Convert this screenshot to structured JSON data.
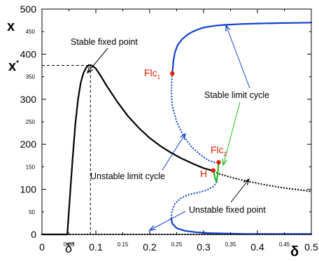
{
  "chart_data": {
    "type": "line",
    "title": "",
    "xlabel": "δ",
    "ylabel": "x",
    "xlim": [
      0,
      0.5
    ],
    "ylim": [
      0,
      500
    ],
    "x_ticks": [
      {
        "v": 0,
        "label": "0",
        "size": "major"
      },
      {
        "v": 0.05,
        "label": "0.05",
        "size": "minor"
      },
      {
        "v": 0.1,
        "label": "0.1",
        "size": "major"
      },
      {
        "v": 0.15,
        "label": "0.15",
        "size": "minor"
      },
      {
        "v": 0.2,
        "label": "0.2",
        "size": "major"
      },
      {
        "v": 0.25,
        "label": "0.25",
        "size": "minor"
      },
      {
        "v": 0.3,
        "label": "0.3",
        "size": "major"
      },
      {
        "v": 0.35,
        "label": "0.35",
        "size": "minor"
      },
      {
        "v": 0.4,
        "label": "0.4",
        "size": "major"
      },
      {
        "v": 0.45,
        "label": "0.45",
        "size": "minor"
      },
      {
        "v": 0.5,
        "label": "0.5",
        "size": "major"
      }
    ],
    "y_ticks": [
      {
        "v": 0,
        "label": "0",
        "size": "major"
      },
      {
        "v": 50,
        "label": "50",
        "size": "minor"
      },
      {
        "v": 100,
        "label": "100",
        "size": "major"
      },
      {
        "v": 150,
        "label": "150",
        "size": "minor"
      },
      {
        "v": 200,
        "label": "200",
        "size": "major"
      },
      {
        "v": 250,
        "label": "250",
        "size": "minor"
      },
      {
        "v": 300,
        "label": "300",
        "size": "major"
      },
      {
        "v": 350,
        "label": "350",
        "size": "minor"
      },
      {
        "v": 400,
        "label": "400",
        "size": "major"
      },
      {
        "v": 450,
        "label": "450",
        "size": "minor"
      },
      {
        "v": 500,
        "label": "500",
        "size": "major"
      }
    ],
    "series": [
      {
        "key": "stable_fp_zero",
        "color": "#000000",
        "style": "solid",
        "width": 2.2,
        "x": [
          0,
          0.047
        ],
        "y": [
          0,
          0
        ]
      },
      {
        "key": "stable_fp_branch",
        "color": "#000000",
        "style": "solid",
        "width": 2.2,
        "x": [
          0.047,
          0.052,
          0.057,
          0.062,
          0.067,
          0.072,
          0.077,
          0.082,
          0.087,
          0.092,
          0.096,
          0.1,
          0.11,
          0.12,
          0.14,
          0.16,
          0.18,
          0.2,
          0.22,
          0.24,
          0.26,
          0.28,
          0.3,
          0.315
        ],
        "y": [
          0,
          85,
          170,
          245,
          300,
          337,
          358,
          370,
          376,
          375,
          372,
          368,
          350,
          330,
          294,
          262,
          236,
          214,
          196,
          181,
          168,
          157,
          147,
          142
        ]
      },
      {
        "key": "unstable_fp",
        "color": "#000000",
        "style": "dotted",
        "width": 2.2,
        "x": [
          0.315,
          0.33,
          0.35,
          0.37,
          0.39,
          0.41,
          0.43,
          0.45,
          0.47,
          0.49,
          0.5
        ],
        "y": [
          142,
          134,
          127,
          121,
          116,
          111,
          107,
          103,
          100,
          97,
          95
        ]
      },
      {
        "key": "unstable_fp_zero",
        "color": "#000000",
        "style": "dotted",
        "width": 2.2,
        "x": [
          0.047,
          0.1,
          0.2,
          0.3,
          0.4,
          0.5
        ],
        "y": [
          0,
          0,
          0,
          0,
          0,
          0
        ]
      },
      {
        "key": "stable_lc_upper",
        "color": "#1040d0",
        "style": "solid",
        "width": 2.2,
        "x": [
          0.242,
          0.244,
          0.247,
          0.252,
          0.26,
          0.27,
          0.28,
          0.29,
          0.3,
          0.32,
          0.34,
          0.37,
          0.4,
          0.44,
          0.5
        ],
        "y": [
          357,
          385,
          405,
          420,
          433,
          443,
          450,
          455,
          459,
          463,
          465,
          467,
          468,
          469,
          470
        ]
      },
      {
        "key": "unstable_lc_upper",
        "color": "#1040d0",
        "style": "dotted",
        "width": 2.2,
        "x": [
          0.242,
          0.24,
          0.242,
          0.25,
          0.262,
          0.277,
          0.293,
          0.308,
          0.319,
          0.325,
          0.328
        ],
        "y": [
          357,
          320,
          285,
          250,
          220,
          195,
          178,
          165,
          160,
          159,
          160
        ]
      },
      {
        "key": "stable_lc_small",
        "color": "#20c020",
        "style": "solid",
        "width": 2.2,
        "x": [
          0.318,
          0.32,
          0.322,
          0.324,
          0.326,
          0.328
        ],
        "y": [
          142,
          132,
          123,
          116,
          132,
          160
        ]
      },
      {
        "key": "unstable_lc_lower",
        "color": "#1040d0",
        "style": "dotted",
        "width": 2.2,
        "x": [
          0.324,
          0.318,
          0.305,
          0.29,
          0.272,
          0.257,
          0.246,
          0.241,
          0.24
        ],
        "y": [
          116,
          106,
          98,
          93,
          88,
          80,
          67,
          50,
          35
        ]
      },
      {
        "key": "stable_lc_lower",
        "color": "#1040d0",
        "style": "solid",
        "width": 2.2,
        "x": [
          0.24,
          0.242,
          0.25,
          0.265,
          0.285,
          0.31,
          0.34,
          0.38,
          0.44,
          0.5
        ],
        "y": [
          35,
          24,
          14,
          8,
          5,
          3,
          2,
          1,
          1,
          1
        ]
      },
      {
        "key": "guide_xstar_h",
        "color": "#000000",
        "style": "dashed",
        "width": 1,
        "x": [
          0,
          0.09
        ],
        "y": [
          375,
          375
        ]
      },
      {
        "key": "guide_xstar_v",
        "color": "#000000",
        "style": "dashed",
        "width": 1,
        "x": [
          0.09,
          0.09
        ],
        "y": [
          375,
          0
        ]
      }
    ],
    "points": [
      {
        "key": "flc1",
        "x": 0.242,
        "y": 357,
        "color": "#e02000"
      },
      {
        "key": "flc2",
        "x": 0.328,
        "y": 160,
        "color": "#e02000"
      },
      {
        "key": "hopf",
        "x": 0.318,
        "y": 142,
        "color": "#e02000"
      }
    ],
    "markers": {
      "xstar": {
        "main": "x",
        "sup": "*"
      },
      "deltastar": {
        "main": "δ",
        "sup": "*"
      },
      "flc1": {
        "main": "Flc",
        "sub": "1"
      },
      "flc2": {
        "main": "Flc",
        "sub": "2"
      },
      "hopf": {
        "main": "H"
      }
    },
    "annotations": [
      {
        "key": "stable_fp",
        "text": "Stable fixed point"
      },
      {
        "key": "stable_lc",
        "text": "Stable limit cycle"
      },
      {
        "key": "unstable_lc",
        "text": "Unstable limit cycle"
      },
      {
        "key": "unstable_fp",
        "text": "Unstable fixed point"
      }
    ],
    "colors": {
      "stable_fixed_point": "#000000",
      "limit_cycle": "#1040d0",
      "small_limit_cycle": "#20c020",
      "bifurcation_point": "#e02000",
      "arrow_blue": "#1040d0",
      "arrow_green": "#20c020"
    }
  }
}
